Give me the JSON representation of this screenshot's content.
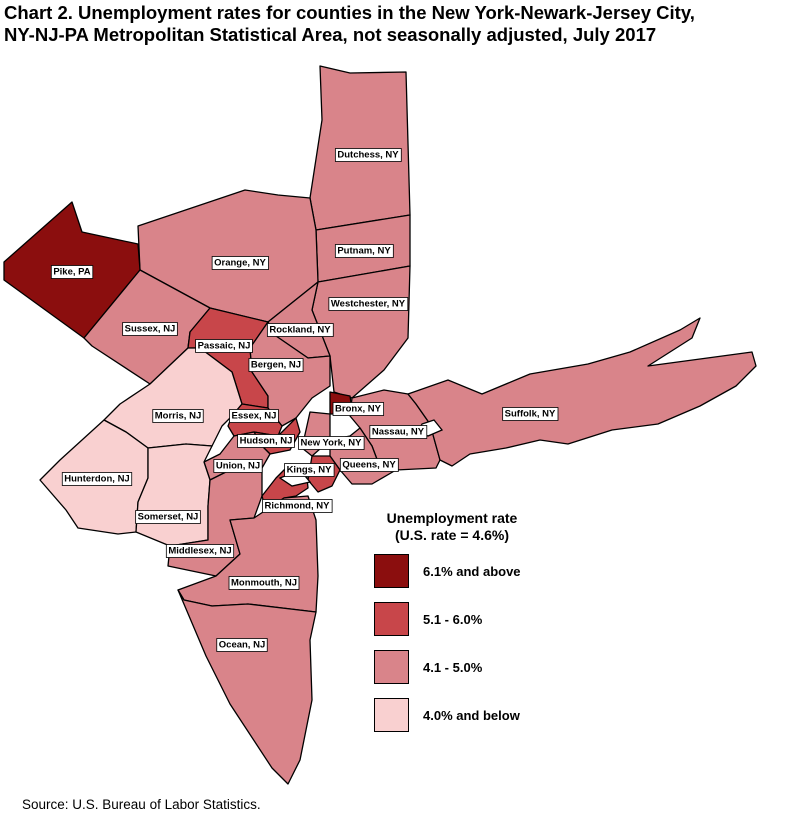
{
  "title_line1": "Chart 2. Unemployment rates for counties in the New York-Newark-Jersey City,",
  "title_line2": "NY-NJ-PA Metropolitan Statistical Area, not seasonally adjusted, July 2017",
  "legend": {
    "title_line1": "Unemployment rate",
    "title_line2": "(U.S. rate = 4.6%)",
    "classes": [
      {
        "label": "6.1% and above",
        "color": "#8b0e0e"
      },
      {
        "label": "5.1 - 6.0%",
        "color": "#c8464a"
      },
      {
        "label": "4.1 - 5.0%",
        "color": "#d9848a"
      },
      {
        "label": "4.0% and below",
        "color": "#f9d0d0"
      }
    ]
  },
  "counties": [
    {
      "id": "dutchess",
      "label": "Dutchess, NY",
      "class": 2
    },
    {
      "id": "putnam",
      "label": "Putnam, NY",
      "class": 2
    },
    {
      "id": "orange",
      "label": "Orange, NY",
      "class": 2
    },
    {
      "id": "pike",
      "label": "Pike, PA",
      "class": 0
    },
    {
      "id": "westchester",
      "label": "Westchester, NY",
      "class": 2
    },
    {
      "id": "rockland",
      "label": "Rockland, NY",
      "class": 2
    },
    {
      "id": "sussex",
      "label": "Sussex, NJ",
      "class": 2
    },
    {
      "id": "passaic",
      "label": "Passaic, NJ",
      "class": 1
    },
    {
      "id": "bergen",
      "label": "Bergen, NJ",
      "class": 2
    },
    {
      "id": "morris",
      "label": "Morris, NJ",
      "class": 3
    },
    {
      "id": "essex",
      "label": "Essex, NJ",
      "class": 1
    },
    {
      "id": "hudson",
      "label": "Hudson, NJ",
      "class": 1
    },
    {
      "id": "bronx",
      "label": "Bronx, NY",
      "class": 0
    },
    {
      "id": "new_york",
      "label": "New York, NY",
      "class": 2
    },
    {
      "id": "nassau",
      "label": "Nassau, NY",
      "class": 2
    },
    {
      "id": "suffolk",
      "label": "Suffolk, NY",
      "class": 2
    },
    {
      "id": "queens",
      "label": "Queens, NY",
      "class": 2
    },
    {
      "id": "kings",
      "label": "Kings, NY",
      "class": 1
    },
    {
      "id": "union",
      "label": "Union, NJ",
      "class": 2
    },
    {
      "id": "hunterdon",
      "label": "Hunterdon, NJ",
      "class": 3
    },
    {
      "id": "somerset",
      "label": "Somerset, NJ",
      "class": 3
    },
    {
      "id": "richmond",
      "label": "Richmond, NY",
      "class": 1
    },
    {
      "id": "middlesex",
      "label": "Middlesex, NJ",
      "class": 2
    },
    {
      "id": "monmouth",
      "label": "Monmouth, NJ",
      "class": 2
    },
    {
      "id": "ocean",
      "label": "Ocean, NJ",
      "class": 2
    }
  ],
  "source": "Source: U.S. Bureau of Labor Statistics."
}
